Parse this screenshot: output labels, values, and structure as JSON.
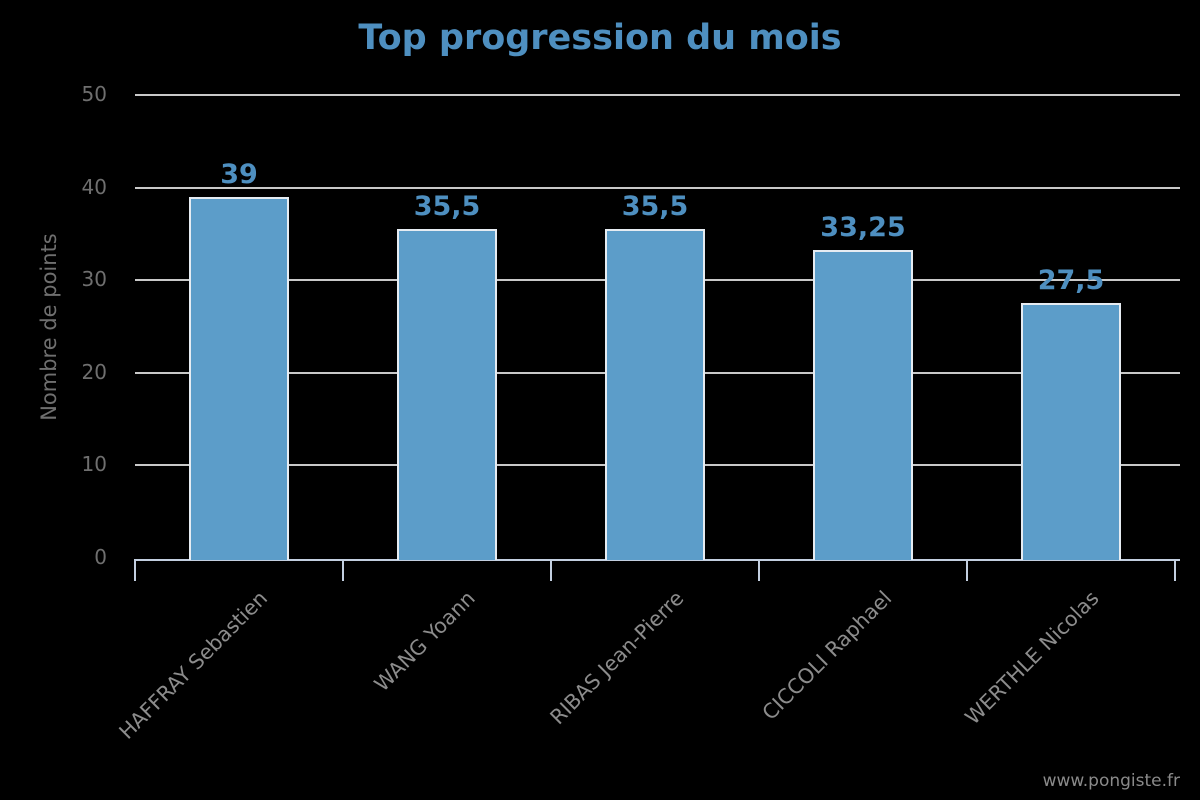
{
  "page": {
    "watermark": "www.pongiste.fr"
  },
  "chart_data": {
    "type": "bar",
    "title": "Top progression du mois",
    "xlabel": "",
    "ylabel": "Nombre de points",
    "categories": [
      "HAFFRAY Sebastien",
      "WANG Yoann",
      "RIBAS Jean-Pierre",
      "CICCOLI Raphael",
      "WERTHLE Nicolas"
    ],
    "values": [
      39,
      35.5,
      35.5,
      33.25,
      27.5
    ],
    "value_labels": [
      "39",
      "35,5",
      "35,5",
      "33,25",
      "27,5"
    ],
    "yticks": [
      0,
      10,
      20,
      30,
      40,
      50
    ],
    "ylim": [
      0,
      50
    ],
    "grid": true,
    "legend": "none",
    "colors": {
      "background": "#000000",
      "bar_fill": "#5c9dc9",
      "bar_border": "#e6ecf2",
      "title": "#4e8fc0",
      "value_label": "#4e8fc0",
      "grid_line": "#c9c9c9",
      "axis_line": "#c3cfe0",
      "ytick_label": "#6f6f6f",
      "xtick_label": "#8c8c8c",
      "watermark": "#8a8a8a"
    }
  }
}
